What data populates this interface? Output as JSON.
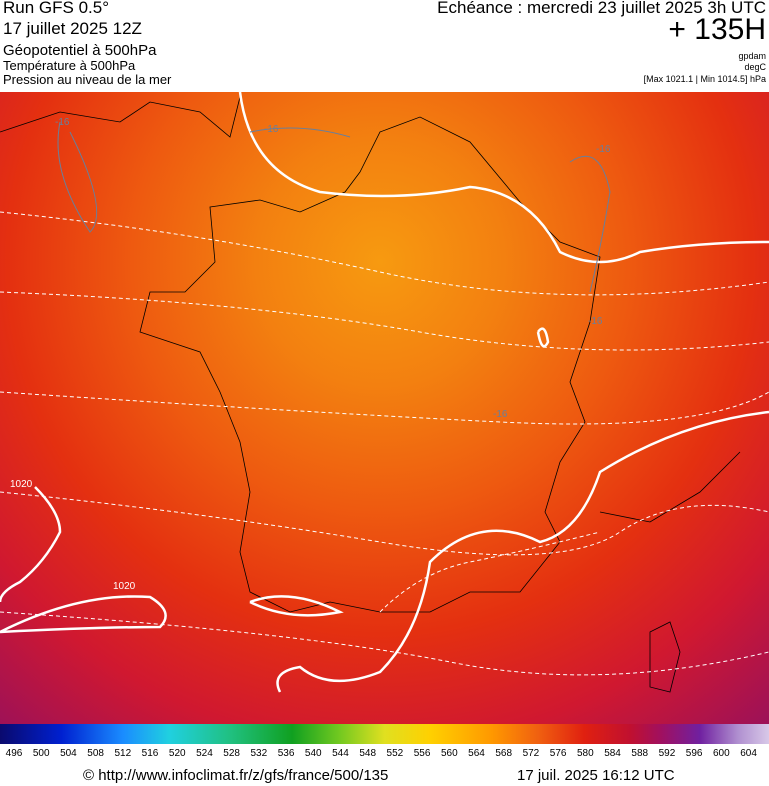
{
  "header": {
    "run": "Run GFS 0.5°",
    "date": "17 juillet 2025 12Z",
    "field_1": "Géopotentiel à 500hPa",
    "field_2": "Température à 500hPa",
    "field_3": "Pression au niveau de la mer",
    "echeance": "Echéance : mercredi 23 juillet 2025 3h UTC",
    "lead": "+ 135H",
    "unit_1": "gpdam",
    "unit_2": "degC",
    "range": "[Max 1021.1 | Min 1014.5] hPa"
  },
  "map": {
    "contour_labels": [
      "-16",
      "-16",
      "-16",
      "-16",
      "-16",
      "1020",
      "1020"
    ]
  },
  "legend": {
    "labels": [
      496,
      500,
      504,
      508,
      512,
      516,
      520,
      524,
      528,
      532,
      536,
      540,
      544,
      548,
      552,
      556,
      560,
      564,
      568,
      572,
      576,
      580,
      584,
      588,
      592,
      596,
      600,
      604
    ]
  },
  "footer": {
    "source": "© http://www.infoclimat.fr/z/gfs/france/500/135",
    "generated": "17 juil. 2025 16:12 UTC"
  }
}
